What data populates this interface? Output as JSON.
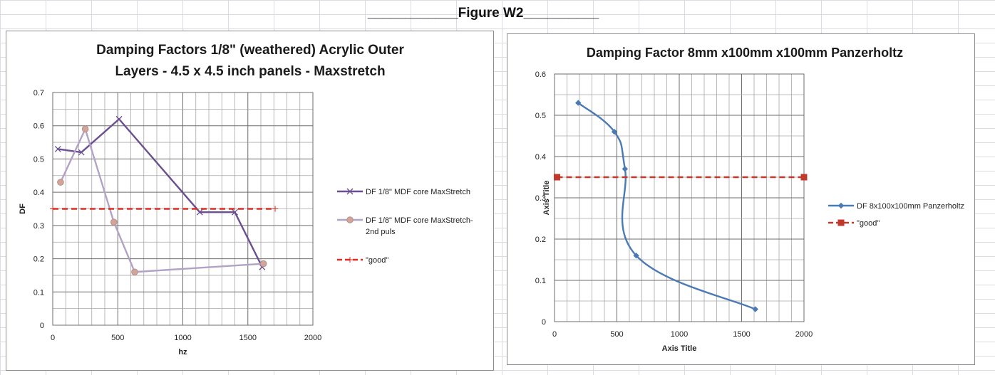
{
  "figure": {
    "title": "Figure W2",
    "rule_left": "____________",
    "rule_right": "__________"
  },
  "chart_data": [
    {
      "type": "line",
      "title_lines": [
        "Damping Factors 1/8\"  (weathered) Acrylic Outer",
        "Layers - 4.5 x 4.5 inch panels - Maxstretch"
      ],
      "xlabel": "hz",
      "ylabel": "DF",
      "xlim": [
        0,
        2000
      ],
      "ylim": [
        0,
        0.7
      ],
      "x_ticks": [
        0,
        500,
        1000,
        1500,
        2000
      ],
      "y_ticks": [
        0,
        0.1,
        0.2,
        0.3,
        0.4,
        0.5,
        0.6,
        0.7
      ],
      "x_minor_step": 100,
      "y_minor_step": 0.05,
      "grid": true,
      "legend_position": "right",
      "series": [
        {
          "name": "DF 1/8\" MDF core MaxStretch",
          "legend_lines": [
            "DF 1/8\" MDF core MaxStretch"
          ],
          "color": "#6a4f91",
          "marker": "x",
          "dash": "",
          "x": [
            40,
            220,
            510,
            1130,
            1400,
            1610
          ],
          "y": [
            0.53,
            0.52,
            0.62,
            0.34,
            0.34,
            0.175
          ]
        },
        {
          "name": "DF 1/8\" MDF core MaxStretch-2nd puls",
          "legend_lines": [
            "DF 1/8\" MDF core MaxStretch-",
            "2nd puls"
          ],
          "color": "#b3a2c7",
          "marker": "circle",
          "dash": "",
          "x": [
            60,
            250,
            470,
            630,
            1620
          ],
          "y": [
            0.43,
            0.59,
            0.31,
            0.16,
            0.185
          ]
        },
        {
          "name": "\"good\"",
          "legend_lines": [
            "\"good\""
          ],
          "color": "#e02b20",
          "marker": "plus",
          "dash": "8 5",
          "x": [
            0,
            1710
          ],
          "y": [
            0.35,
            0.35
          ]
        }
      ]
    },
    {
      "type": "line",
      "title_lines": [
        "Damping Factor 8mm x100mm x100mm Panzerholtz"
      ],
      "xlabel": "Axis Title",
      "ylabel": "Axis Title",
      "xlim": [
        0,
        2000
      ],
      "ylim": [
        0,
        0.6
      ],
      "x_ticks": [
        0,
        500,
        1000,
        1500,
        2000
      ],
      "y_ticks": [
        0,
        0.1,
        0.2,
        0.3,
        0.4,
        0.5,
        0.6
      ],
      "x_minor_step": 100,
      "y_minor_step": 0.05,
      "grid": true,
      "legend_position": "right",
      "series": [
        {
          "name": "DF 8x100x100mm Panzerholtz",
          "legend_lines": [
            "DF 8x100x100mm Panzerholtz"
          ],
          "color": "#4a7ab5",
          "marker": "diamond",
          "dash": "",
          "smooth": true,
          "x": [
            190,
            480,
            565,
            655,
            1610
          ],
          "y": [
            0.53,
            0.46,
            0.37,
            0.16,
            0.03
          ]
        },
        {
          "name": "\"good\"",
          "legend_lines": [
            "\"good\""
          ],
          "color": "#c0392b",
          "marker": "square",
          "dash": "8 5",
          "x": [
            20,
            2000
          ],
          "y": [
            0.35,
            0.35
          ]
        }
      ]
    }
  ]
}
